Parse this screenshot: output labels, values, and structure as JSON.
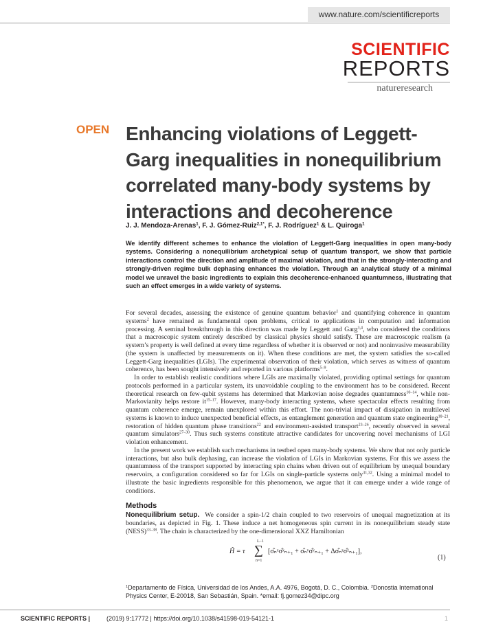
{
  "header": {
    "url": "www.nature.com/scientificreports",
    "journal_line1": "SCIENTIFIC",
    "journal_line2": "REPORTS",
    "publisher": "natureresearch"
  },
  "article": {
    "access": "OPEN",
    "title_lines": [
      "Enhancing violations of Leggett-",
      "Garg inequalities in nonequilibrium",
      "correlated many-body systems by",
      "interactions and decoherence"
    ],
    "authors": [
      "J. J. Mendoza-Arenas",
      "1",
      ", F. J. Gómez-Ruiz",
      "2,1*",
      ", F. J. Rodríguez",
      "1",
      " & L. Quiroga",
      "1"
    ],
    "abstract": "We identify different schemes to enhance the violation of Leggett-Garg inequalities in open many-body systems. Considering a nonequilibrium archetypical setup of quantum transport, we show that particle interactions control the direction and amplitude of maximal violation, and that in the strongly-interacting and strongly-driven regime bulk dephasing enhances the violation. Through an analytical study of a minimal model we unravel the basic ingredients to explain this decoherence-enhanced quantumness, illustrating that such an effect emerges in a wide variety of systems.",
    "paragraphs": [
      [
        "For several decades, assessing the existence of genuine quantum behavior",
        "1",
        " and quantifying coherence in quantum systems",
        "2",
        " have remained as fundamental open problems, critical to applications in computation and information processing. A seminal breakthrough in this direction was made by Leggett and Garg",
        "3,4",
        ", who considered the conditions that a macroscopic system entirely described by classical physics should satisfy. These are macroscopic realism (a system’s property is well defined at every time regardless of whether it is observed or not) and noninvasive measurability (the system is unaffected by measurements on it). When these conditions are met, the system satisfies the so-called Leggett-Garg inequalities (LGIs). The experimental observation of their violation, which serves as witness of quantum coherence, has been sought intensively and reported in various platforms",
        "5–9",
        "."
      ],
      [
        "In order to establish realistic conditions where LGIs are maximally violated, providing optimal settings for quantum protocols performed in a particular system, its unavoidable coupling to the environment has to be considered. Recent theoretical research on few-qubit systems has determined that Markovian noise degrades quantumness",
        "10–14",
        ", while non-Markovianity helps restore it",
        "15–17",
        ". However, many-body interacting systems, where spectacular effects resulting from quantum coherence emerge, remain unexplored within this effort. The non-trivial impact of dissipation in multilevel systems is known to induce unexpected beneficial effects, as entanglement generation and quantum state engineering",
        "18–21",
        ", restoration of hidden quantum phase transitions",
        "22",
        " and environment-assisted transport",
        "23–26",
        ", recently observed in several quantum simulators",
        "27–30",
        ". Thus such systems constitute attractive candidates for uncovering novel mechanisms of LGI violation enhancement."
      ],
      [
        "In the present work we establish such mechanisms in testbed open many-body systems. We show that not only particle interactions, but also bulk dephasing, can increase the violation of LGIs in Markovian systems. For this we assess the quantumness of the transport supported by interacting spin chains when driven out of equilibrium by unequal boundary reservoirs, a configuration considered so far for LGIs on single-particle systems only",
        "31,32",
        ". Using a minimal model to illustrate the basic ingredients responsible for this phenomenon, we argue that it can emerge under a wide range of conditions."
      ]
    ],
    "methods_heading": "Methods",
    "subsection": "Nonequilibrium setup.",
    "methods_paragraph": [
      "We consider a spin-1/2 chain coupled to two reservoirs of unequal magnetization at its boundaries, as depicted in Fig. 1. These induce a net homogeneous spin current in its nonequilibrium steady state (NESS)",
      "33–38",
      ". The chain is characterized by the one-dimensional XXZ Hamiltonian"
    ],
    "equation": {
      "lhs": "Ĥ = τ",
      "sum_upper": "L−1",
      "sum_symbol": "∑",
      "sum_lower": "n=1",
      "body": "[σ̂ₙˣσ̂ˣₙ₊₁ + σ̂ₙʸσ̂ʸₙ₊₁ + Δσ̂ₙᶻσ̂ᶻₙ₊₁],",
      "number": "(1)"
    },
    "footnote": [
      "",
      "1",
      "Departamento de Física, Universidad de los Andes, A.A. 4976, Bogotá, D. C., Colombia. ",
      "2",
      "Donostia International Physics Center, E-20018, San Sebastián, Spain. *email: fj.gomez34@dipc.org"
    ]
  },
  "footer": {
    "journal": "SCIENTIFIC REPORTS |",
    "citation": "(2019) 9:17772 | https://doi.org/10.1038/s41598-019-54121-1",
    "page": "1"
  }
}
